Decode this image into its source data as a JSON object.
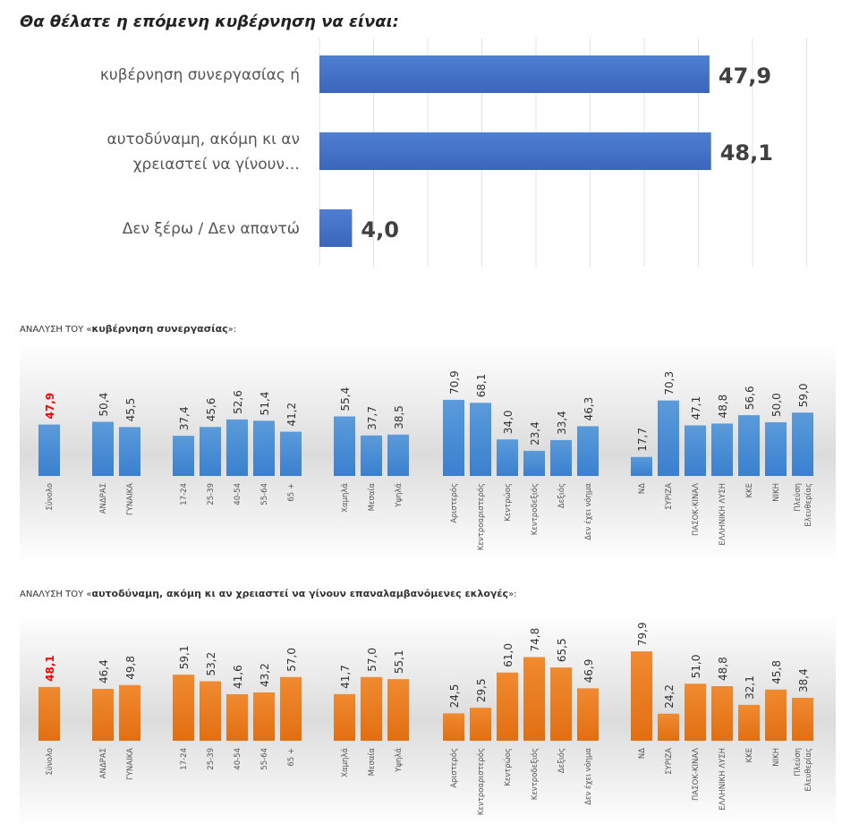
{
  "chart_data": [
    {
      "type": "bar",
      "orientation": "horizontal",
      "title": "Θα θέλατε η επόμενη κυβέρνηση να είναι:",
      "categories": [
        "κυβέρνηση συνεργασίας ή",
        "αυτοδύναμη, ακόμη κι αν χρειαστεί να γίνουν…",
        "Δεν ξέρω / Δεν απαντώ"
      ],
      "category_lines": [
        [
          "κυβέρνηση συνεργασίας ή"
        ],
        [
          "αυτοδύναμη, ακόμη κι αν",
          "χρειαστεί να γίνουν…"
        ],
        [
          "Δεν ξέρω / Δεν απαντώ"
        ]
      ],
      "values": [
        47.9,
        48.1,
        4.0
      ],
      "value_labels": [
        "47,9",
        "48,1",
        "4,0"
      ],
      "color": "#4472C4",
      "grid": true
    },
    {
      "type": "bar",
      "title_prefix": "ΑΝΑΛΥΣΗ ΤΟΥ «",
      "title_bold": "κυβέρνηση συνεργασίας",
      "title_suffix": "»:",
      "groups": [
        {
          "categories": [
            [
              "Σύνολο"
            ]
          ],
          "values": [
            47.9
          ],
          "labels": [
            "47,9"
          ]
        },
        {
          "categories": [
            [
              "ΑΝΔΡΑΣ"
            ],
            [
              "ΓΥΝΑΙΚΑ"
            ]
          ],
          "values": [
            50.4,
            45.5
          ],
          "labels": [
            "50,4",
            "45,5"
          ]
        },
        {
          "categories": [
            [
              "17-24"
            ],
            [
              "25-39"
            ],
            [
              "40-54"
            ],
            [
              "55-64"
            ],
            [
              "65 +"
            ]
          ],
          "values": [
            37.4,
            45.6,
            52.6,
            51.4,
            41.2
          ],
          "labels": [
            "37,4",
            "45,6",
            "52,6",
            "51,4",
            "41,2"
          ]
        },
        {
          "categories": [
            [
              "Χαμηλά"
            ],
            [
              "Μεσαία"
            ],
            [
              "Υψηλά"
            ]
          ],
          "values": [
            55.4,
            37.7,
            38.5
          ],
          "labels": [
            "55,4",
            "37,7",
            "38,5"
          ]
        },
        {
          "categories": [
            [
              "Αριστερός"
            ],
            [
              "Κεντροαριστερός"
            ],
            [
              "Κεντρώος"
            ],
            [
              "Κεντροδεξιός"
            ],
            [
              "Δεξιός"
            ],
            [
              "Δεν έχει νόημα"
            ]
          ],
          "values": [
            70.9,
            68.1,
            34.0,
            23.4,
            33.4,
            46.3
          ],
          "labels": [
            "70,9",
            "68,1",
            "34,0",
            "23,4",
            "33,4",
            "46,3"
          ]
        },
        {
          "categories": [
            [
              "ΝΔ"
            ],
            [
              "ΣΥΡΙΖΑ"
            ],
            [
              "ΠΑΣΟΚ-ΚΙΝΑΛ"
            ],
            [
              "ΕΛΛΗΝΙΚΗ ΛΥΣΗ"
            ],
            [
              "ΚΚΕ"
            ],
            [
              "ΝΙΚΗ"
            ],
            [
              "Πλεύση",
              "Ελευθερίας"
            ]
          ],
          "values": [
            17.7,
            70.3,
            47.1,
            48.8,
            56.6,
            50.0,
            59.0
          ],
          "labels": [
            "17,7",
            "70,3",
            "47,1",
            "48,8",
            "56,6",
            "50,0",
            "59,0"
          ]
        }
      ],
      "color": "#4A8FD6",
      "highlight_color": "#FF0000"
    },
    {
      "type": "bar",
      "title_prefix": "ΑΝΑΛΥΣΗ ΤΟΥ «",
      "title_bold": "αυτοδύναμη, ακόμη κι αν χρειαστεί να γίνουν επαναλαμβανόμενες εκλογές",
      "title_suffix": "»:",
      "groups": [
        {
          "categories": [
            [
              "Σύνολο"
            ]
          ],
          "values": [
            48.1
          ],
          "labels": [
            "48,1"
          ]
        },
        {
          "categories": [
            [
              "ΑΝΔΡΑΣ"
            ],
            [
              "ΓΥΝΑΙΚΑ"
            ]
          ],
          "values": [
            46.4,
            49.8
          ],
          "labels": [
            "46,4",
            "49,8"
          ]
        },
        {
          "categories": [
            [
              "17-24"
            ],
            [
              "25-39"
            ],
            [
              "40-54"
            ],
            [
              "55-64"
            ],
            [
              "65 +"
            ]
          ],
          "values": [
            59.1,
            53.2,
            41.6,
            43.2,
            57.0
          ],
          "labels": [
            "59,1",
            "53,2",
            "41,6",
            "43,2",
            "57,0"
          ]
        },
        {
          "categories": [
            [
              "Χαμηλά"
            ],
            [
              "Μεσαία"
            ],
            [
              "Υψηλά"
            ]
          ],
          "values": [
            41.7,
            57.0,
            55.1
          ],
          "labels": [
            "41,7",
            "57,0",
            "55,1"
          ]
        },
        {
          "categories": [
            [
              "Αριστερός"
            ],
            [
              "Κεντροαριστερός"
            ],
            [
              "Κεντρώος"
            ],
            [
              "Κεντροδεξιός"
            ],
            [
              "Δεξιός"
            ],
            [
              "Δεν έχει νόημα"
            ]
          ],
          "values": [
            24.5,
            29.5,
            61.0,
            74.8,
            65.5,
            46.9
          ],
          "labels": [
            "24,5",
            "29,5",
            "61,0",
            "74,8",
            "65,5",
            "46,9"
          ]
        },
        {
          "categories": [
            [
              "ΝΔ"
            ],
            [
              "ΣΥΡΙΖΑ"
            ],
            [
              "ΠΑΣΟΚ-ΚΙΝΑΛ"
            ],
            [
              "ΕΛΛΗΝΙΚΗ ΛΥΣΗ"
            ],
            [
              "ΚΚΕ"
            ],
            [
              "ΝΙΚΗ"
            ],
            [
              "Πλεύση",
              "Ελευθερίας"
            ]
          ],
          "values": [
            79.9,
            24.2,
            51.0,
            48.8,
            32.1,
            45.8,
            38.4
          ],
          "labels": [
            "79,9",
            "24,2",
            "51,0",
            "48,8",
            "32,1",
            "45,8",
            "38,4"
          ]
        }
      ],
      "color": "#EE7A22",
      "highlight_color": "#FF0000"
    }
  ]
}
